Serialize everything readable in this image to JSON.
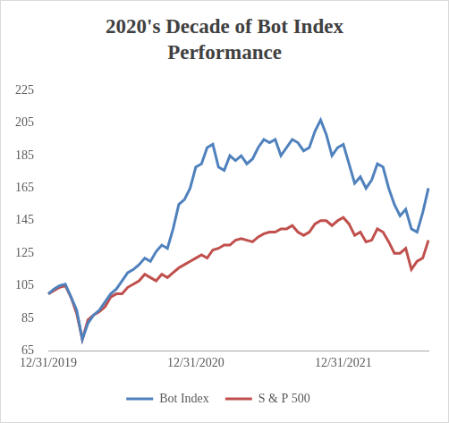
{
  "chart_data": {
    "type": "line",
    "title": "2020's Decade of Bot Index Performance",
    "categories": [
      "12/31/2019",
      null,
      null,
      null,
      null,
      null,
      null,
      null,
      null,
      null,
      null,
      null,
      null,
      null,
      null,
      null,
      null,
      null,
      null,
      null,
      null,
      null,
      null,
      null,
      null,
      null,
      "12/31/2020",
      null,
      null,
      null,
      null,
      null,
      null,
      null,
      null,
      null,
      null,
      null,
      null,
      null,
      null,
      null,
      null,
      null,
      null,
      null,
      null,
      null,
      null,
      null,
      null,
      null,
      "12/31/2021",
      null,
      null,
      null,
      null,
      null,
      null,
      null,
      null,
      null,
      null,
      null,
      null,
      null,
      null,
      null
    ],
    "series": [
      {
        "name": "Bot Index",
        "color": "#4f81bd",
        "values": [
          100,
          103,
          105,
          106,
          98,
          90,
          72,
          82,
          87,
          90,
          95,
          100,
          103,
          108,
          113,
          115,
          118,
          122,
          120,
          126,
          130,
          128,
          140,
          155,
          158,
          165,
          178,
          180,
          190,
          192,
          178,
          176,
          185,
          182,
          185,
          180,
          183,
          190,
          195,
          193,
          195,
          185,
          190,
          195,
          193,
          188,
          190,
          200,
          207,
          198,
          185,
          190,
          192,
          180,
          168,
          172,
          165,
          170,
          180,
          178,
          165,
          155,
          148,
          152,
          140,
          138,
          150,
          165
        ]
      },
      {
        "name": "S & P 500",
        "color": "#c0504d",
        "values": [
          100,
          102,
          104,
          105,
          98,
          88,
          72,
          84,
          87,
          89,
          92,
          98,
          100,
          100,
          104,
          106,
          108,
          112,
          110,
          108,
          112,
          110,
          113,
          116,
          118,
          120,
          122,
          124,
          122,
          127,
          128,
          130,
          130,
          133,
          134,
          133,
          132,
          135,
          137,
          138,
          138,
          140,
          140,
          142,
          138,
          136,
          138,
          143,
          145,
          145,
          142,
          145,
          147,
          143,
          136,
          138,
          132,
          133,
          140,
          138,
          132,
          125,
          125,
          128,
          115,
          120,
          122,
          133
        ]
      }
    ],
    "ylim": [
      65,
      225
    ],
    "yticks": [
      65,
      85,
      105,
      125,
      145,
      165,
      185,
      205,
      225
    ],
    "grid": false,
    "legend": "bottom"
  }
}
